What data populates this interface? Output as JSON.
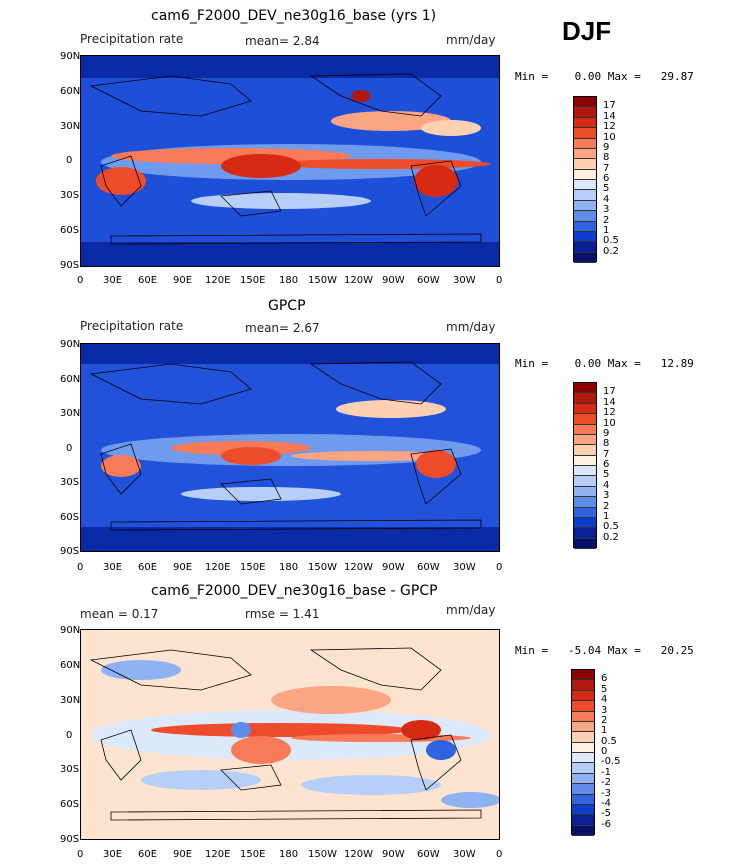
{
  "season": "DJF",
  "panels": [
    {
      "title": "cam6_F2000_DEV_ne30g16_base (yrs 1)",
      "left_label": "Precipitation rate",
      "center_label": "mean=    2.84",
      "units": "mm/day",
      "minmax": "Min =    0.00 Max =   29.87",
      "colorbar_labels": [
        "17",
        "14",
        "12",
        "10",
        "9",
        "8",
        "7",
        "6",
        "5",
        "4",
        "3",
        "2",
        "1",
        "0.5",
        "0.2"
      ],
      "colorbar_colors": [
        "#8b0000",
        "#b0170f",
        "#d62a12",
        "#ee4b2b",
        "#f87a56",
        "#fca583",
        "#fdd0b2",
        "#fff0e0",
        "#dbe9fb",
        "#b7cff7",
        "#8fb2f2",
        "#5f8cea",
        "#2f63e0",
        "#0d3dcc",
        "#0a1f96",
        "#061068"
      ]
    },
    {
      "title": "GPCP",
      "left_label": "Precipitation rate",
      "center_label": "mean=    2.67",
      "units": "mm/day",
      "minmax": "Min =    0.00 Max =   12.89",
      "colorbar_labels": [
        "17",
        "14",
        "12",
        "10",
        "9",
        "8",
        "7",
        "6",
        "5",
        "4",
        "3",
        "2",
        "1",
        "0.5",
        "0.2"
      ],
      "colorbar_colors": [
        "#8b0000",
        "#b0170f",
        "#d62a12",
        "#ee4b2b",
        "#f87a56",
        "#fca583",
        "#fdd0b2",
        "#fff0e0",
        "#dbe9fb",
        "#b7cff7",
        "#8fb2f2",
        "#5f8cea",
        "#2f63e0",
        "#0d3dcc",
        "#0a1f96",
        "#061068"
      ]
    },
    {
      "title": "cam6_F2000_DEV_ne30g16_base - GPCP",
      "left_label": "mean =    0.17",
      "center_label": "rmse =    1.41",
      "units": "mm/day",
      "minmax": "Min =   -5.04 Max =   20.25",
      "colorbar_labels": [
        "6",
        "5",
        "4",
        "3",
        "2",
        "1",
        "0.5",
        "0",
        "-0.5",
        "-1",
        "-2",
        "-3",
        "-4",
        "-5",
        "-6"
      ],
      "colorbar_colors": [
        "#8b0000",
        "#b0170f",
        "#d62a12",
        "#ee4b2b",
        "#f87a56",
        "#fca583",
        "#fdd0b2",
        "#fff0e0",
        "#dbe9fb",
        "#b7cff7",
        "#8fb2f2",
        "#5f8cea",
        "#2f63e0",
        "#0d3dcc",
        "#0a1f96",
        "#061068"
      ]
    }
  ],
  "lat_ticks": [
    "90N",
    "60N",
    "30N",
    "0",
    "30S",
    "60S",
    "90S"
  ],
  "lon_ticks": [
    "0",
    "30E",
    "60E",
    "90E",
    "120E",
    "150E",
    "180",
    "150W",
    "120W",
    "90W",
    "60W",
    "30W",
    "0"
  ]
}
